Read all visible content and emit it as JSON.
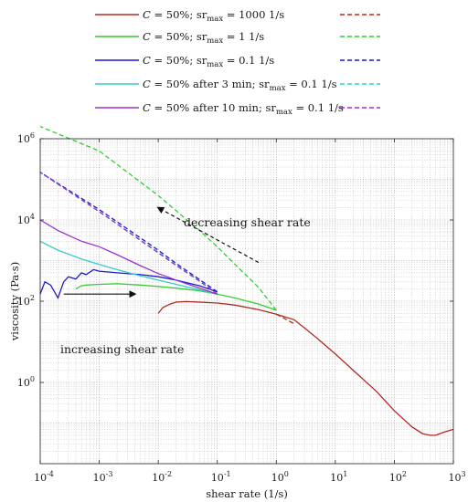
{
  "chart_data": {
    "type": "line",
    "xlabel": "shear rate (1/s)",
    "ylabel": "viscosity (Pa·s)",
    "x_scale": "log",
    "y_scale": "log",
    "xlim": [
      0.0001,
      1000
    ],
    "ylim": [
      0.01,
      1000000
    ],
    "grid": true,
    "legend_position": "top",
    "x_ticks": [
      {
        "value": 0.0001,
        "base": "10",
        "exp": "-4"
      },
      {
        "value": 0.001,
        "base": "10",
        "exp": "-3"
      },
      {
        "value": 0.01,
        "base": "10",
        "exp": "-2"
      },
      {
        "value": 0.1,
        "base": "10",
        "exp": "-1"
      },
      {
        "value": 1,
        "base": "10",
        "exp": "0"
      },
      {
        "value": 10,
        "base": "10",
        "exp": "1"
      },
      {
        "value": 100,
        "base": "10",
        "exp": "2"
      },
      {
        "value": 1000,
        "base": "10",
        "exp": "3"
      }
    ],
    "y_ticks": [
      {
        "value": 1,
        "base": "10",
        "exp": "0"
      },
      {
        "value": 100,
        "base": "10",
        "exp": "2"
      },
      {
        "value": 10000,
        "base": "10",
        "exp": "4"
      },
      {
        "value": 1000000,
        "base": "10",
        "exp": "6"
      }
    ],
    "series": [
      {
        "legend": {
          "c": "C",
          "rest": " = 50%; sr",
          "sub": "max",
          "tail": " = 1000 1/s"
        },
        "color": "#b22a1e",
        "increasing": [
          [
            0.01,
            50
          ],
          [
            0.012,
            70
          ],
          [
            0.016,
            85
          ],
          [
            0.02,
            95
          ],
          [
            0.03,
            98
          ],
          [
            0.05,
            95
          ],
          [
            0.1,
            90
          ],
          [
            0.2,
            80
          ],
          [
            0.5,
            62
          ],
          [
            1,
            48
          ],
          [
            2,
            35
          ],
          [
            3,
            22
          ],
          [
            5,
            12
          ],
          [
            10,
            5
          ],
          [
            20,
            2
          ],
          [
            50,
            0.6
          ],
          [
            100,
            0.2
          ],
          [
            200,
            0.08
          ],
          [
            300,
            0.055
          ],
          [
            400,
            0.05
          ],
          [
            500,
            0.05
          ],
          [
            700,
            0.06
          ],
          [
            1000,
            0.07
          ]
        ],
        "decreasing": [
          [
            1,
            48
          ],
          [
            2,
            28
          ]
        ]
      },
      {
        "legend": {
          "c": "C",
          "rest": " = 50%; sr",
          "sub": "max",
          "tail": " = 1 1/s"
        },
        "color": "#33cc33",
        "increasing": [
          [
            0.0004,
            200
          ],
          [
            0.0005,
            240
          ],
          [
            0.0006,
            250
          ],
          [
            0.001,
            260
          ],
          [
            0.002,
            270
          ],
          [
            0.005,
            250
          ],
          [
            0.01,
            230
          ],
          [
            0.02,
            210
          ],
          [
            0.05,
            180
          ],
          [
            0.1,
            150
          ],
          [
            0.2,
            120
          ],
          [
            0.5,
            85
          ],
          [
            1,
            60
          ]
        ],
        "decreasing": [
          [
            1,
            60
          ],
          [
            0.5,
            220
          ],
          [
            0.2,
            800
          ],
          [
            0.1,
            2200
          ],
          [
            0.05,
            5500
          ],
          [
            0.01,
            40000
          ],
          [
            0.001,
            500000
          ],
          [
            0.0001,
            2000000
          ]
        ]
      },
      {
        "legend": {
          "c": "C",
          "rest": " = 50%; sr",
          "sub": "max",
          "tail": " = 0.1 1/s"
        },
        "color": "#1a1acc",
        "increasing": [
          [
            0.0001,
            150
          ],
          [
            0.00012,
            300
          ],
          [
            0.00015,
            250
          ],
          [
            0.0002,
            120
          ],
          [
            0.00025,
            300
          ],
          [
            0.0003,
            400
          ],
          [
            0.0004,
            350
          ],
          [
            0.0005,
            500
          ],
          [
            0.0006,
            450
          ],
          [
            0.0008,
            600
          ],
          [
            0.001,
            550
          ],
          [
            0.0015,
            520
          ],
          [
            0.002,
            500
          ],
          [
            0.005,
            450
          ],
          [
            0.01,
            400
          ],
          [
            0.02,
            330
          ],
          [
            0.05,
            240
          ],
          [
            0.1,
            170
          ]
        ],
        "decreasing": [
          [
            0.1,
            170
          ],
          [
            0.05,
            340
          ],
          [
            0.02,
            850
          ],
          [
            0.01,
            1800
          ],
          [
            0.001,
            18000
          ],
          [
            0.0001,
            150000
          ]
        ]
      },
      {
        "legend": {
          "c": "C",
          "rest": " = 50% after 3 min; sr",
          "sub": "max",
          "tail": " = 0.1 1/s"
        },
        "color": "#33cccc",
        "increasing": [
          [
            0.0001,
            3000
          ],
          [
            0.0002,
            1800
          ],
          [
            0.0005,
            1100
          ],
          [
            0.001,
            800
          ],
          [
            0.002,
            600
          ],
          [
            0.005,
            420
          ],
          [
            0.01,
            330
          ],
          [
            0.02,
            260
          ],
          [
            0.05,
            190
          ],
          [
            0.1,
            150
          ]
        ],
        "decreasing": [
          [
            0.1,
            150
          ],
          [
            0.05,
            320
          ],
          [
            0.02,
            780
          ],
          [
            0.01,
            1600
          ],
          [
            0.001,
            16000
          ],
          [
            0.0001,
            150000
          ]
        ]
      },
      {
        "legend": {
          "c": "C",
          "rest": " = 50% after 10 min; sr",
          "sub": "max",
          "tail": " = 0.1 1/s"
        },
        "color": "#9933cc",
        "increasing": [
          [
            0.0001,
            10000
          ],
          [
            0.0002,
            5500
          ],
          [
            0.0005,
            3000
          ],
          [
            0.001,
            2200
          ],
          [
            0.002,
            1400
          ],
          [
            0.005,
            750
          ],
          [
            0.01,
            480
          ],
          [
            0.02,
            330
          ],
          [
            0.05,
            210
          ],
          [
            0.1,
            150
          ]
        ],
        "decreasing": [
          [
            0.1,
            150
          ],
          [
            0.05,
            310
          ],
          [
            0.02,
            760
          ],
          [
            0.01,
            1550
          ],
          [
            0.001,
            16000
          ],
          [
            0.0001,
            150000
          ]
        ]
      }
    ],
    "annotations": [
      {
        "text": "decreasing shear rate",
        "arrow_from": [
          0.5,
          900
        ],
        "arrow_to": [
          0.01,
          20000
        ],
        "arrow_style": "dashed"
      },
      {
        "text": "increasing shear rate",
        "arrow_from": [
          0.00025,
          150
        ],
        "arrow_to": [
          0.004,
          150
        ],
        "arrow_style": "solid"
      }
    ]
  }
}
